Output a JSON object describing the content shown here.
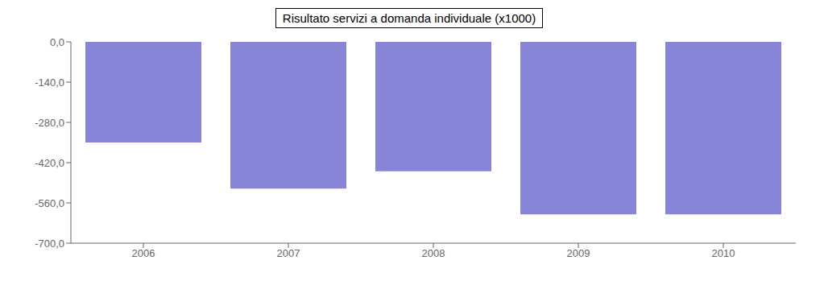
{
  "chart_data": {
    "type": "bar",
    "title": "Risultato servizi a domanda individuale (x1000)",
    "categories": [
      "2006",
      "2007",
      "2008",
      "2009",
      "2010"
    ],
    "values": [
      -350,
      -510,
      -450,
      -600,
      -600
    ],
    "ylim": [
      -700,
      0
    ],
    "yticks": [
      {
        "value": 0,
        "label": "0,0"
      },
      {
        "value": -140,
        "label": "-140,0"
      },
      {
        "value": -280,
        "label": "-280,0"
      },
      {
        "value": -420,
        "label": "-420,0"
      },
      {
        "value": -560,
        "label": "-560,0"
      },
      {
        "value": -700,
        "label": "-700,0"
      }
    ],
    "grid": false
  }
}
